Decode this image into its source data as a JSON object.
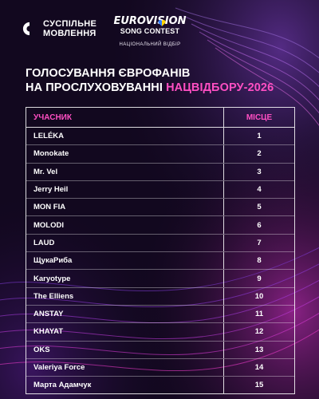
{
  "header": {
    "broadcaster_line1": "СУСПІЛЬНЕ",
    "broadcaster_line2": "МОВЛЕННЯ",
    "contest_word": "EUROVISION",
    "contest_sub": "SONG CONTEST",
    "national_selection": "НАЦІОНАЛЬНИЙ ВІДБІР"
  },
  "title": {
    "line1": "ГОЛОСУВАННЯ ЄВРОФАНІВ",
    "line2_prefix": "НА ПРОСЛУХОВУВАННІ ",
    "line2_accent": "НАЦВІДБОРУ-2026"
  },
  "table": {
    "col_participant": "УЧАСНИК",
    "col_place": "МІСЦЕ",
    "rows": [
      {
        "name": "LELÉKA",
        "place": "1"
      },
      {
        "name": "Monokate",
        "place": "2"
      },
      {
        "name": "Mr. Vel",
        "place": "3"
      },
      {
        "name": "Jerry Heil",
        "place": "4"
      },
      {
        "name": "MON FIA",
        "place": "5"
      },
      {
        "name": "MOLODI",
        "place": "6"
      },
      {
        "name": "LAUD",
        "place": "7"
      },
      {
        "name": "ЩукаРиба",
        "place": "8"
      },
      {
        "name": "Karyotype",
        "place": "9"
      },
      {
        "name": "The Elliens",
        "place": "10"
      },
      {
        "name": "ANSTAY",
        "place": "11"
      },
      {
        "name": "KHAYAT",
        "place": "12"
      },
      {
        "name": "OKS",
        "place": "13"
      },
      {
        "name": "Valeriya Force",
        "place": "14"
      },
      {
        "name": "Марта Адамчук",
        "place": "15"
      }
    ]
  },
  "colors": {
    "background": "#12081f",
    "accent": "#ff4fc3",
    "heart_blue": "#2f7bff",
    "heart_yellow": "#ffd400"
  },
  "icons": {
    "broadcaster": "suspilne-logo-icon",
    "heart": "heart-icon"
  }
}
